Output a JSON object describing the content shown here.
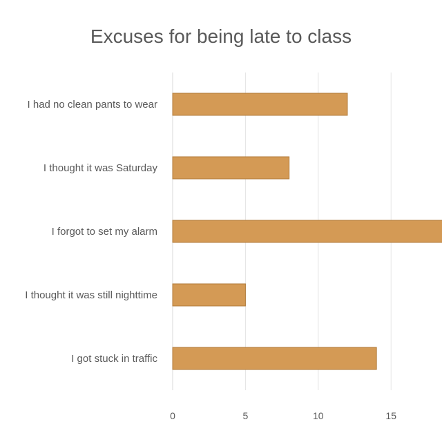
{
  "chart_data": {
    "type": "bar",
    "orientation": "horizontal",
    "title": "Excuses for being late to class",
    "categories": [
      "I had no clean pants to wear",
      "I thought it was Saturday",
      "I forgot to set my alarm",
      "I thought it was still nighttime",
      "I got stuck in traffic"
    ],
    "values": [
      12,
      8,
      19,
      5,
      14
    ],
    "x_ticks": [
      0,
      5,
      10,
      15
    ],
    "xlim": [
      0,
      18.5
    ],
    "xlabel": "",
    "ylabel": "",
    "grid": true,
    "bar_color": "#d49a55",
    "bar_outline_color": "#b07a38"
  }
}
